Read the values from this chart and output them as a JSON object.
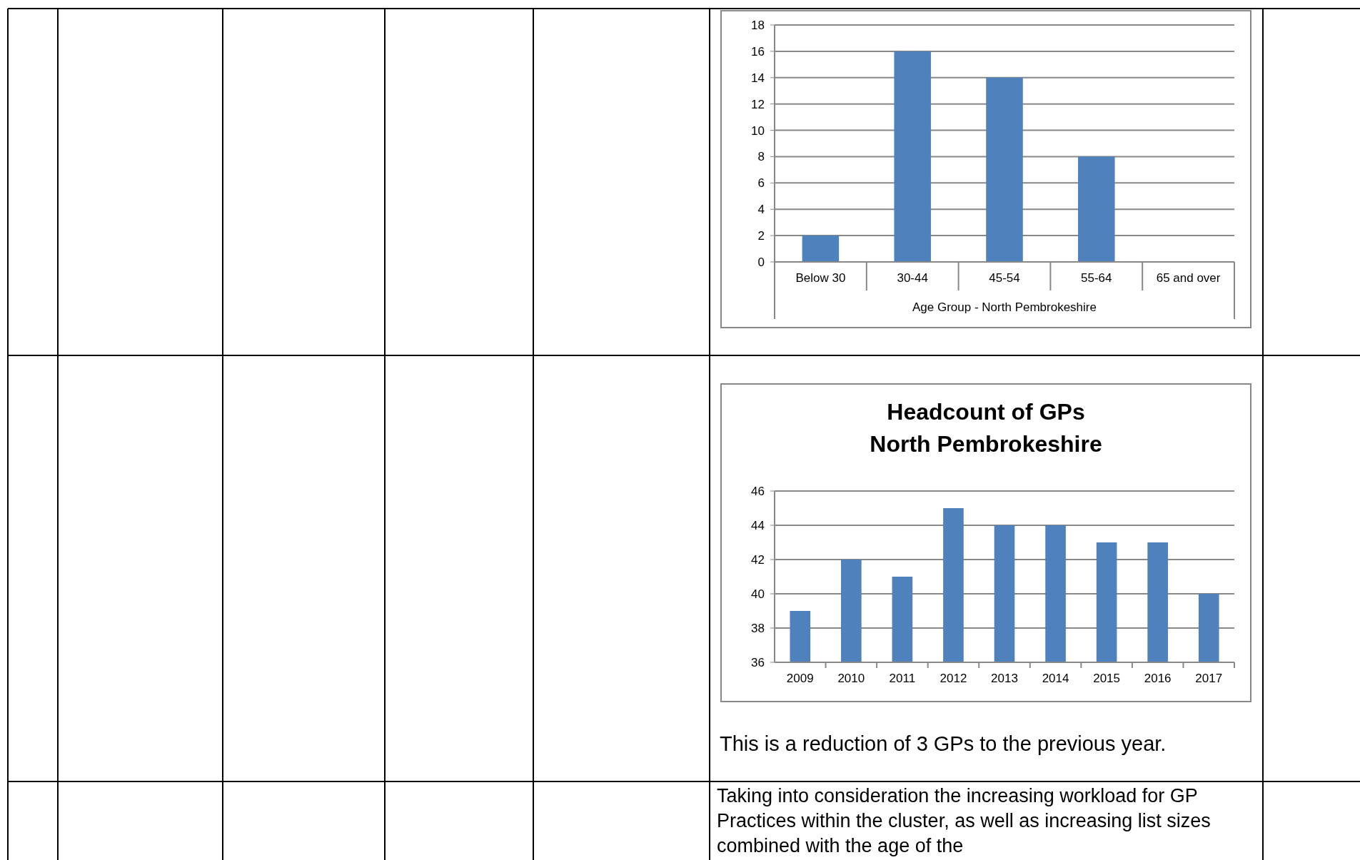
{
  "chart_data": [
    {
      "type": "bar",
      "xlabel": "Age Group - North Pembrokeshire",
      "categories": [
        "Below 30",
        "30-44",
        "45-54",
        "55-64",
        "65 and over"
      ],
      "values": [
        2,
        16,
        14,
        8,
        0
      ],
      "color": "#4f81bd",
      "ylim": [
        0,
        18
      ],
      "yticks": [
        0,
        2,
        4,
        6,
        8,
        10,
        12,
        14,
        16,
        18
      ],
      "grid": "y"
    },
    {
      "type": "bar",
      "title": "Headcount of GPs\nNorth Pembrokeshire",
      "categories": [
        "2009",
        "2010",
        "2011",
        "2012",
        "2013",
        "2014",
        "2015",
        "2016",
        "2017"
      ],
      "values": [
        39,
        42,
        41,
        45,
        44,
        44,
        43,
        43,
        40
      ],
      "color": "#4f81bd",
      "ylim": [
        36,
        46
      ],
      "yticks": [
        36,
        38,
        40,
        42,
        44,
        46
      ],
      "grid": "y",
      "annotations": [
        "This is a reduction of 3 GPs to the previous year.",
        "Taking into consideration the increasing workload for GP Practices within the cluster, as well as increasing list sizes combined with the age of the"
      ]
    }
  ]
}
